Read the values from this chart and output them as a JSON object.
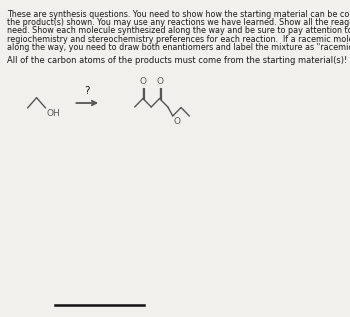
{
  "background_color": "#ffffff",
  "page_bg": "#f2f0ed",
  "text_color": "#1a1a1a",
  "header_text_lines": [
    "These are synthesis questions. You need to show how the starting material can be converted into",
    "the product(s) shown. You may use any reactions we have learned. Show all the reagents you",
    "need. Show each molecule synthesized along the way and be sure to pay attention to the",
    "regiochemistry and stereochemistry preferences for each reaction.  If a racemic molecule is made",
    "along the way, you need to draw both enantiomers and label the mixture as \"racemic\"."
  ],
  "subtext": "All of the carbon atoms of the products must come from the starting material(s)!",
  "question_mark": "?",
  "line_color": "#555555",
  "arrow_color": "#555555",
  "bottom_line_color": "#111111",
  "font_size_header": 5.8,
  "font_size_sub": 6.0,
  "font_size_mol": 6.5,
  "font_size_q": 7.5
}
